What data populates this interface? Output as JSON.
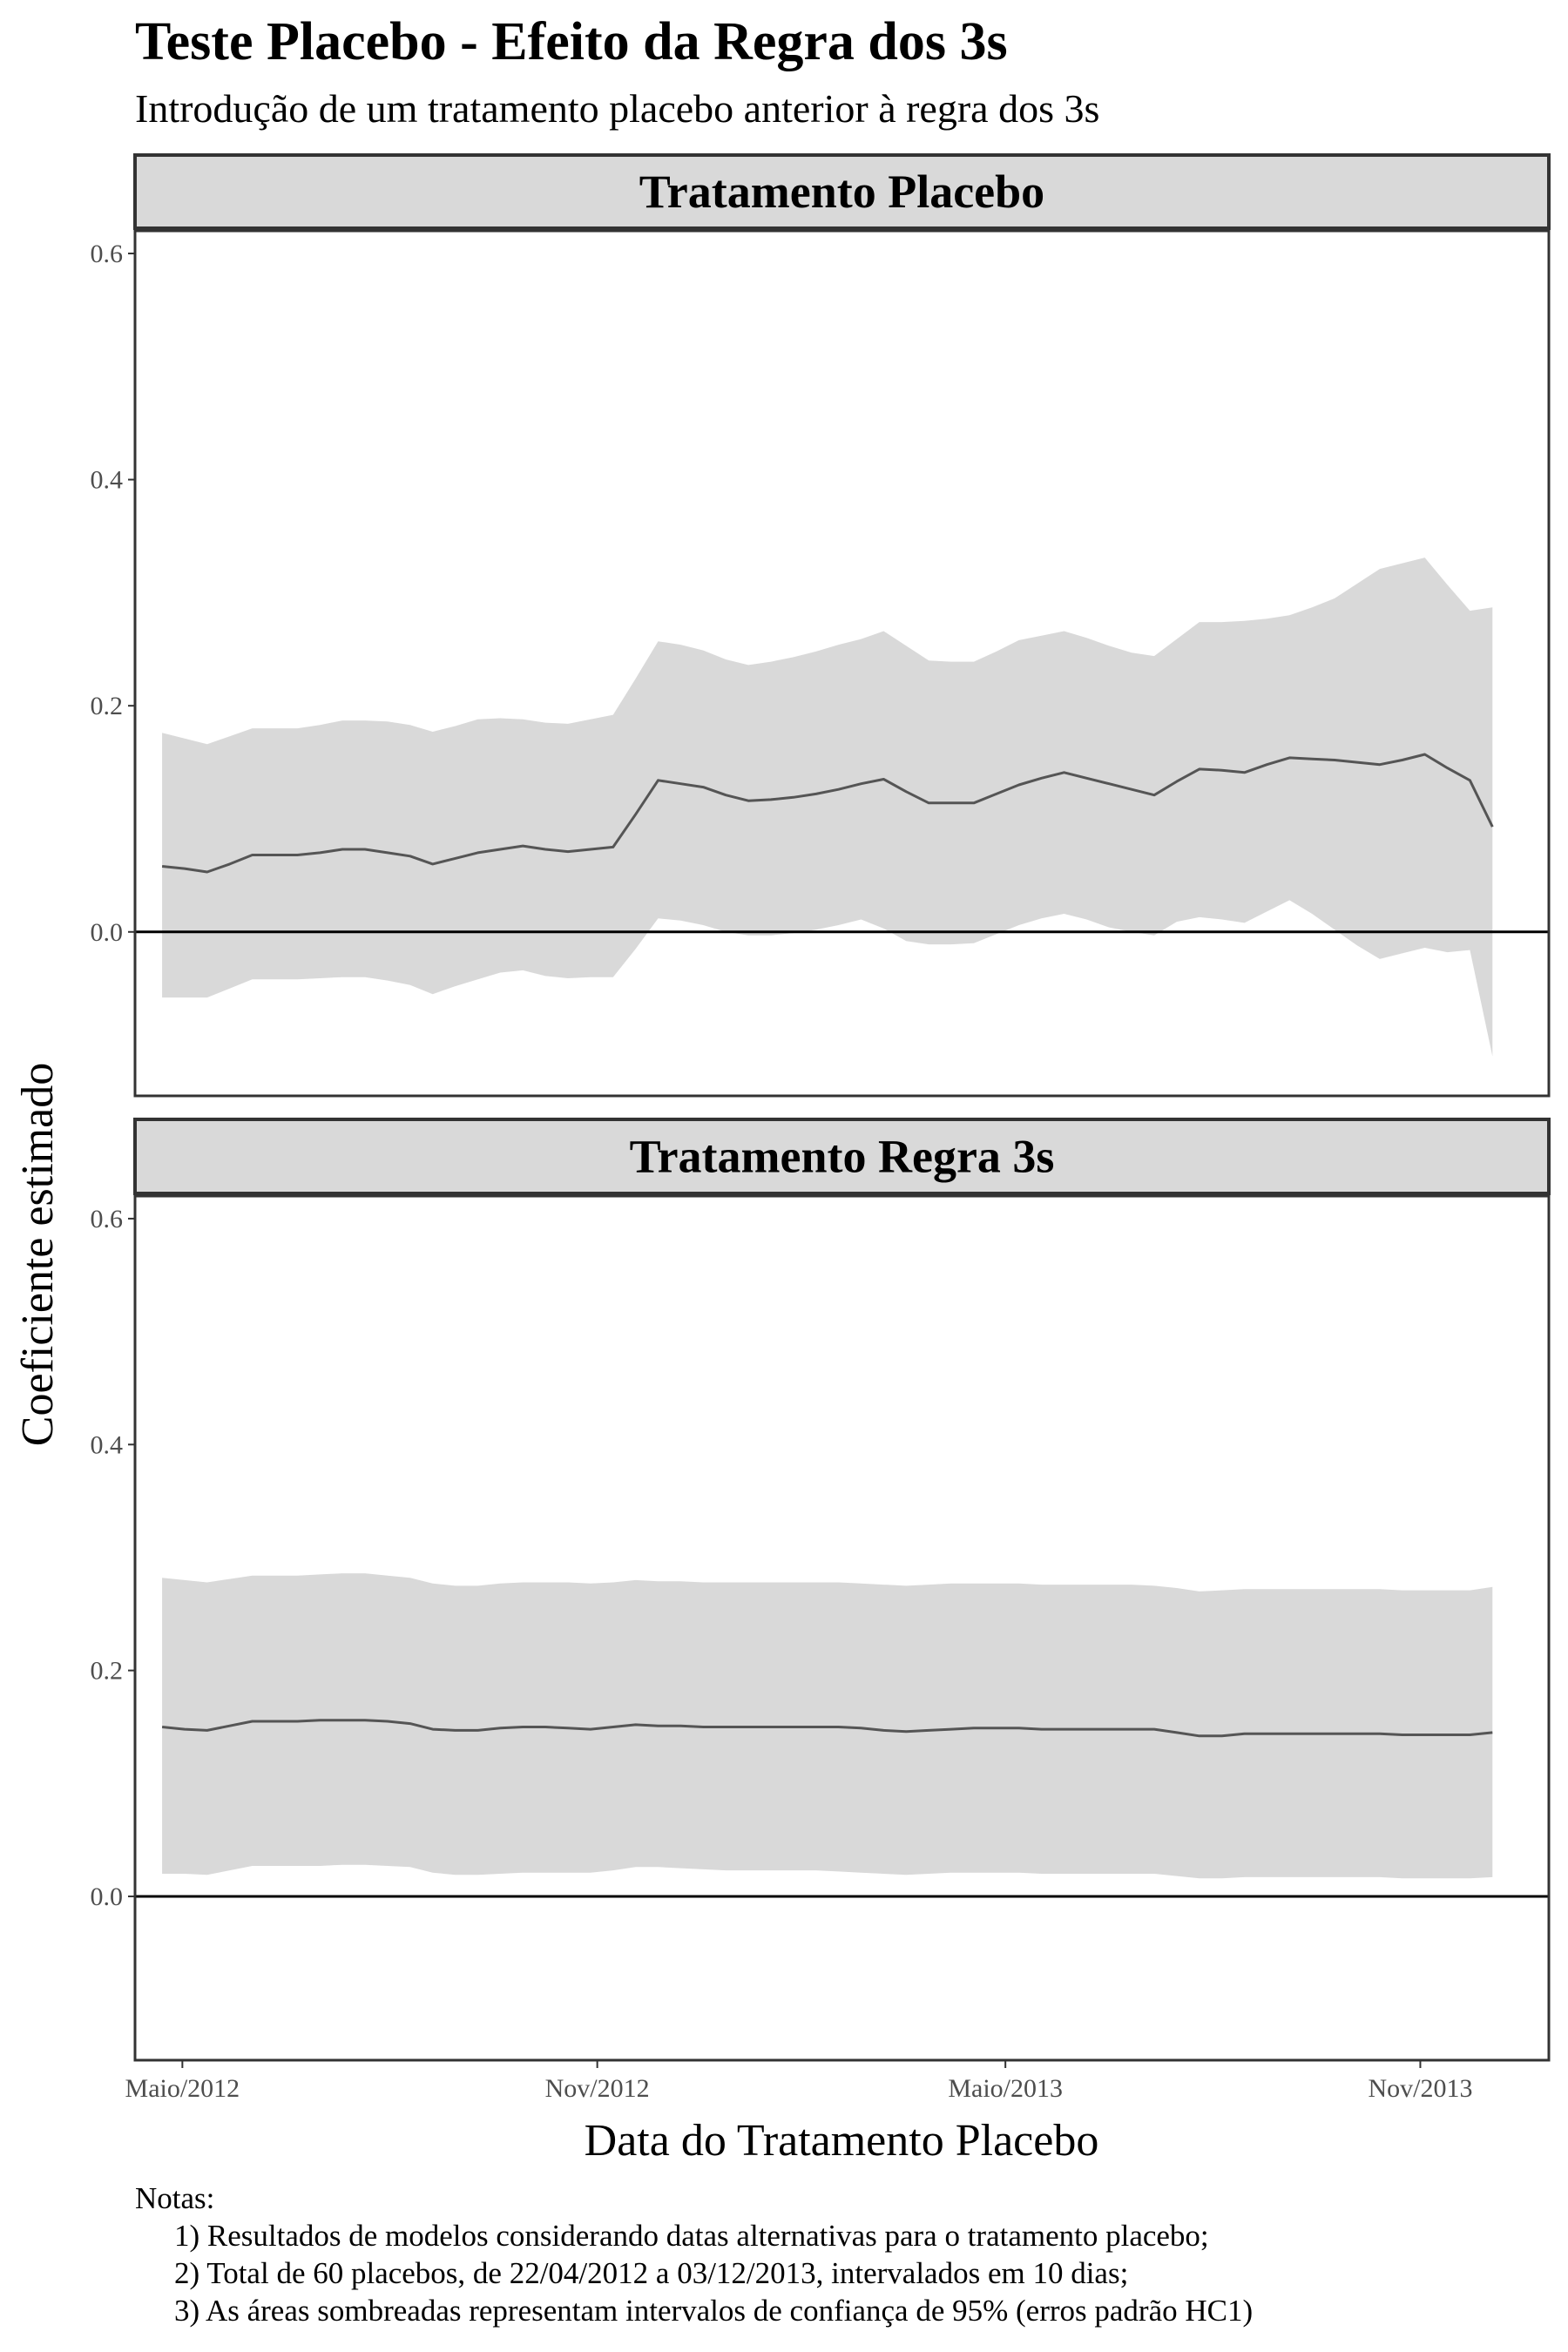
{
  "chart_data": {
    "type": "line",
    "title": "Teste Placebo - Efeito da Regra dos 3s",
    "subtitle": "Introdução de um tratamento placebo anterior à regra dos 3s",
    "xlabel": "Data do Tratamento Placebo",
    "ylabel": "Coeficiente estimado",
    "x_ticks": [
      {
        "label": "Maio/2012",
        "date": "2012-05-01"
      },
      {
        "label": "Nov/2012",
        "date": "2012-11-01"
      },
      {
        "label": "Maio/2013",
        "date": "2013-05-01"
      },
      {
        "label": "Nov/2013",
        "date": "2013-11-01"
      }
    ],
    "xlim": [
      "2012-04-10",
      "2013-12-28"
    ],
    "ylim": [
      -0.145,
      0.62
    ],
    "y_ticks": [
      0.0,
      0.2,
      0.4,
      0.6
    ],
    "y_tick_labels": [
      "0.0",
      "0.2",
      "0.4",
      "0.6"
    ],
    "hline": 0,
    "x": [
      "2012-04-22",
      "2012-05-02",
      "2012-05-12",
      "2012-05-22",
      "2012-06-01",
      "2012-06-11",
      "2012-06-21",
      "2012-07-01",
      "2012-07-11",
      "2012-07-21",
      "2012-07-31",
      "2012-08-10",
      "2012-08-20",
      "2012-08-30",
      "2012-09-09",
      "2012-09-19",
      "2012-09-29",
      "2012-10-09",
      "2012-10-19",
      "2012-10-29",
      "2012-11-08",
      "2012-11-18",
      "2012-11-28",
      "2012-12-08",
      "2012-12-18",
      "2012-12-28",
      "2013-01-07",
      "2013-01-17",
      "2013-01-27",
      "2013-02-06",
      "2013-02-16",
      "2013-02-26",
      "2013-03-08",
      "2013-03-18",
      "2013-03-28",
      "2013-04-07",
      "2013-04-17",
      "2013-04-27",
      "2013-05-07",
      "2013-05-17",
      "2013-05-27",
      "2013-06-06",
      "2013-06-16",
      "2013-06-26",
      "2013-07-06",
      "2013-07-16",
      "2013-07-26",
      "2013-08-05",
      "2013-08-15",
      "2013-08-25",
      "2013-09-04",
      "2013-09-14",
      "2013-09-24",
      "2013-10-04",
      "2013-10-14",
      "2013-10-24",
      "2013-11-03",
      "2013-11-13",
      "2013-11-23",
      "2013-12-03"
    ],
    "panels": [
      {
        "name": "Tratamento Placebo",
        "values": [
          0.058,
          0.056,
          0.053,
          0.06,
          0.068,
          0.068,
          0.068,
          0.07,
          0.073,
          0.073,
          0.07,
          0.067,
          0.06,
          0.065,
          0.07,
          0.073,
          0.076,
          0.073,
          0.071,
          0.073,
          0.075,
          0.104,
          0.134,
          0.131,
          0.128,
          0.121,
          0.116,
          0.117,
          0.119,
          0.122,
          0.126,
          0.131,
          0.135,
          0.124,
          0.114,
          0.114,
          0.114,
          0.122,
          0.13,
          0.136,
          0.141,
          0.136,
          0.131,
          0.126,
          0.121,
          0.133,
          0.144,
          0.143,
          0.141,
          0.148,
          0.154,
          0.153,
          0.152,
          0.15,
          0.148,
          0.152,
          0.157,
          0.145,
          0.134,
          0.093
        ],
        "ci_low": [
          -0.058,
          -0.058,
          -0.058,
          -0.05,
          -0.042,
          -0.042,
          -0.042,
          -0.041,
          -0.04,
          -0.04,
          -0.043,
          -0.047,
          -0.055,
          -0.048,
          -0.042,
          -0.036,
          -0.034,
          -0.039,
          -0.041,
          -0.04,
          -0.04,
          -0.015,
          0.012,
          0.01,
          0.006,
          0.0,
          -0.003,
          -0.003,
          -0.001,
          0.002,
          0.006,
          0.011,
          0.003,
          -0.008,
          -0.011,
          -0.011,
          -0.01,
          -0.002,
          0.006,
          0.012,
          0.016,
          0.011,
          0.004,
          0.0,
          -0.003,
          0.009,
          0.013,
          0.011,
          0.008,
          0.018,
          0.028,
          0.016,
          0.002,
          -0.012,
          -0.024,
          -0.019,
          -0.014,
          -0.018,
          -0.016,
          -0.11
        ],
        "ci_high": [
          0.176,
          0.171,
          0.166,
          0.173,
          0.18,
          0.18,
          0.18,
          0.183,
          0.187,
          0.187,
          0.186,
          0.183,
          0.177,
          0.182,
          0.188,
          0.189,
          0.188,
          0.185,
          0.184,
          0.188,
          0.192,
          0.224,
          0.257,
          0.254,
          0.249,
          0.241,
          0.236,
          0.239,
          0.243,
          0.248,
          0.254,
          0.259,
          0.266,
          0.253,
          0.24,
          0.239,
          0.239,
          0.248,
          0.258,
          0.262,
          0.266,
          0.26,
          0.253,
          0.247,
          0.244,
          0.259,
          0.274,
          0.274,
          0.275,
          0.277,
          0.28,
          0.287,
          0.295,
          0.308,
          0.321,
          0.326,
          0.331,
          0.307,
          0.284,
          0.287
        ]
      },
      {
        "name": "Tratamento Regra 3s",
        "values": [
          0.15,
          0.148,
          0.147,
          0.151,
          0.155,
          0.155,
          0.155,
          0.156,
          0.156,
          0.156,
          0.155,
          0.153,
          0.148,
          0.147,
          0.147,
          0.149,
          0.15,
          0.15,
          0.149,
          0.148,
          0.15,
          0.152,
          0.151,
          0.151,
          0.15,
          0.15,
          0.15,
          0.15,
          0.15,
          0.15,
          0.15,
          0.149,
          0.147,
          0.146,
          0.147,
          0.148,
          0.149,
          0.149,
          0.149,
          0.148,
          0.148,
          0.148,
          0.148,
          0.148,
          0.148,
          0.145,
          0.142,
          0.142,
          0.144,
          0.144,
          0.144,
          0.144,
          0.144,
          0.144,
          0.144,
          0.143,
          0.143,
          0.143,
          0.143,
          0.145
        ],
        "ci_low": [
          0.02,
          0.02,
          0.019,
          0.023,
          0.027,
          0.027,
          0.027,
          0.027,
          0.028,
          0.028,
          0.027,
          0.026,
          0.021,
          0.019,
          0.019,
          0.02,
          0.021,
          0.021,
          0.021,
          0.021,
          0.023,
          0.026,
          0.026,
          0.025,
          0.024,
          0.023,
          0.023,
          0.023,
          0.023,
          0.023,
          0.022,
          0.021,
          0.02,
          0.019,
          0.02,
          0.021,
          0.021,
          0.021,
          0.021,
          0.02,
          0.02,
          0.02,
          0.02,
          0.02,
          0.02,
          0.018,
          0.016,
          0.016,
          0.017,
          0.017,
          0.017,
          0.017,
          0.017,
          0.017,
          0.017,
          0.016,
          0.016,
          0.016,
          0.016,
          0.017
        ],
        "ci_high": [
          0.282,
          0.28,
          0.278,
          0.281,
          0.284,
          0.284,
          0.284,
          0.285,
          0.286,
          0.286,
          0.284,
          0.282,
          0.277,
          0.275,
          0.275,
          0.277,
          0.278,
          0.278,
          0.278,
          0.277,
          0.278,
          0.28,
          0.279,
          0.279,
          0.278,
          0.278,
          0.278,
          0.278,
          0.278,
          0.278,
          0.278,
          0.277,
          0.276,
          0.275,
          0.276,
          0.277,
          0.277,
          0.277,
          0.277,
          0.276,
          0.276,
          0.276,
          0.276,
          0.276,
          0.275,
          0.273,
          0.27,
          0.271,
          0.272,
          0.272,
          0.272,
          0.272,
          0.272,
          0.272,
          0.272,
          0.271,
          0.271,
          0.271,
          0.271,
          0.274
        ]
      }
    ]
  },
  "notes": {
    "heading": "Notas:",
    "items": [
      "1) Resultados de modelos considerando datas alternativas para o tratamento placebo;",
      "2) Total de 60 placebos, de 22/04/2012 a 03/12/2013, intervalados em 10 dias;",
      "3) As áreas sombreadas representam intervalos de confiança de 95% (erros padrão HC1)"
    ]
  },
  "colors": {
    "ribbon": "#d9d9d9",
    "line": "#555555",
    "strip_fill": "#d9d9d9",
    "frame": "#333333",
    "zero_line": "#000000"
  }
}
